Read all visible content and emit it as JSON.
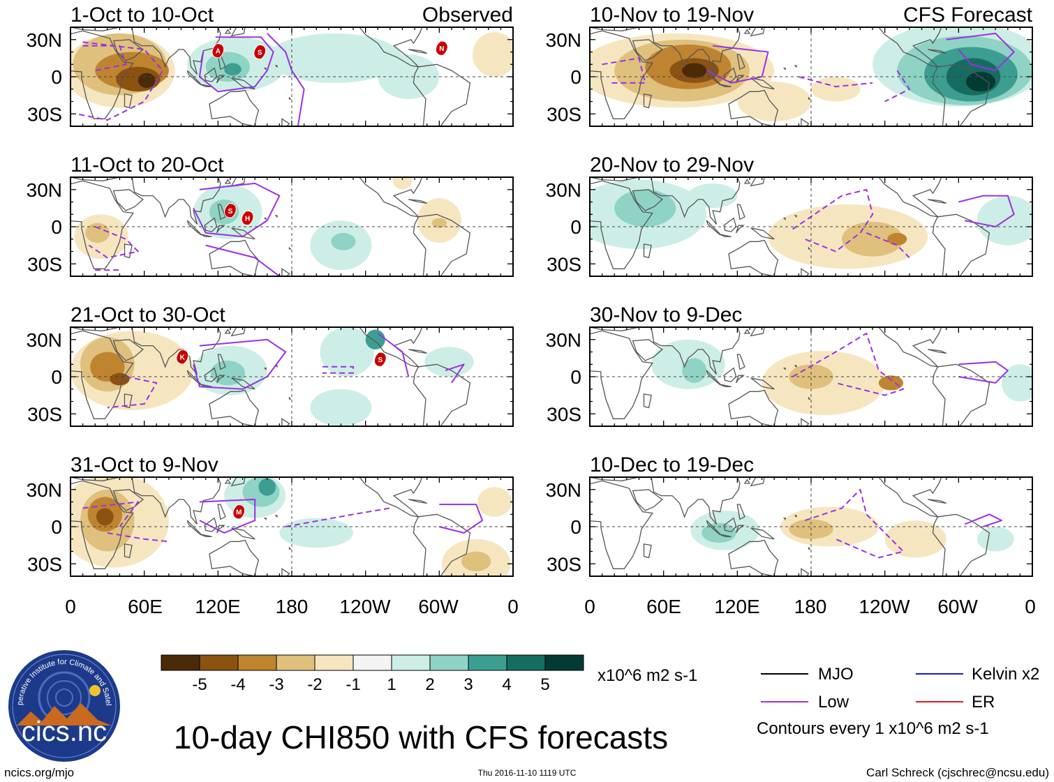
{
  "colors": {
    "neg5": "#4a2a07",
    "neg4": "#8c5212",
    "neg3": "#bf8430",
    "neg2": "#dfc07d",
    "neg1": "#f6e6c0",
    "zero": "#f4f4f4",
    "pos1": "#cdeee6",
    "pos2": "#8fd3c4",
    "pos3": "#3c9e90",
    "pos4": "#176c62",
    "pos5": "#033a33",
    "low": "#9b30e6",
    "mjo": "#000000",
    "kelvin": "#1a1ad6",
    "er": "#e01c1c",
    "land": "#555555",
    "storm": "#c80000"
  },
  "panels": [
    {
      "title": "1-Oct to 10-Oct",
      "tag": "Observed"
    },
    {
      "title": "11-Oct to 20-Oct",
      "tag": ""
    },
    {
      "title": "21-Oct to 30-Oct",
      "tag": ""
    },
    {
      "title": "31-Oct to 9-Nov",
      "tag": ""
    },
    {
      "title": "10-Nov to 19-Nov",
      "tag": "CFS Forecast"
    },
    {
      "title": "20-Nov to 29-Nov",
      "tag": ""
    },
    {
      "title": "30-Nov to 9-Dec",
      "tag": ""
    },
    {
      "title": "10-Dec to 19-Dec",
      "tag": ""
    }
  ],
  "axes": {
    "lat_ticks": [
      "30N",
      "0",
      "30S"
    ],
    "lon_ticks": [
      "0",
      "60E",
      "120E",
      "180",
      "120W",
      "60W",
      "0"
    ]
  },
  "storms": [
    {
      "panel": 0,
      "letter": "A",
      "lon": 120,
      "lat": 21
    },
    {
      "panel": 0,
      "letter": "S",
      "lon": 154,
      "lat": 20
    },
    {
      "panel": 0,
      "letter": "N",
      "lon": 302,
      "lat": 23
    },
    {
      "panel": 1,
      "letter": "S",
      "lon": 130,
      "lat": 13
    },
    {
      "panel": 1,
      "letter": "H",
      "lon": 144,
      "lat": 7
    },
    {
      "panel": 2,
      "letter": "K",
      "lon": 91,
      "lat": 16
    },
    {
      "panel": 2,
      "letter": "S",
      "lon": 252,
      "lat": 14
    },
    {
      "panel": 3,
      "letter": "M",
      "lon": 137,
      "lat": 12
    }
  ],
  "colorbar": {
    "labels": [
      "-5",
      "-4",
      "-3",
      "-2",
      "-1",
      "1",
      "2",
      "3",
      "4",
      "5"
    ],
    "units": "x10^6 m2 s-1"
  },
  "legend": {
    "items": [
      {
        "label": "MJO",
        "color": "#000000"
      },
      {
        "label": "Low",
        "color": "#9b30e6"
      },
      {
        "label": "Kelvin x2",
        "color": "#1a1ad6"
      },
      {
        "label": "ER",
        "color": "#e01c1c"
      }
    ],
    "contour_note": "Contours every 1 x10^6 m2 s-1"
  },
  "main_title": "10-day CHI850 with CFS forecasts",
  "logo": {
    "ring_text": "Cooperative Institute for Climate and Satellites",
    "wordmark": "cics.nc"
  },
  "footer": {
    "left": "ncics.org/mjo",
    "center": "Thu 2016-11-10 1119 UTC",
    "right": "Carl Schreck (cjschrec@ncsu.edu)"
  }
}
